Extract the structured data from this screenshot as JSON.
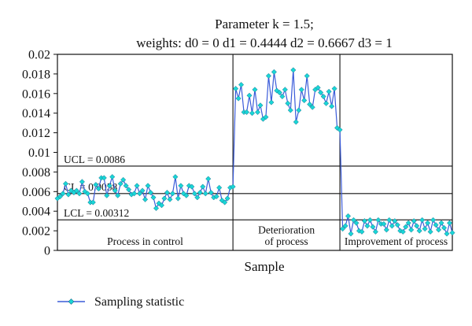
{
  "chart_data": {
    "type": "line",
    "title_line1": "Parameter k = 1.5;",
    "title_line2": "weights: d0 = 0  d1 = 0.4444  d2 = 0.6667  d3 = 1",
    "xlabel": "Sample",
    "ylabel": "",
    "ylim": [
      0,
      0.02
    ],
    "yticks": [
      0,
      0.002,
      0.004,
      0.006,
      0.008,
      0.01,
      0.012,
      0.014,
      0.016,
      0.018,
      0.02
    ],
    "ytick_labels": [
      "0",
      "0.002",
      "0.004",
      "0.006",
      "0.008",
      "0.01",
      "0.012",
      "0.014",
      "0.016",
      "0.018",
      "0.02"
    ],
    "xlim": [
      1,
      145
    ],
    "grid": false,
    "legend_position": "bottom-left",
    "control_lines": [
      {
        "name": "UCL",
        "label": "UCL = 0.0086",
        "value": 0.0086
      },
      {
        "name": "CL",
        "label": "CL = 0.0058",
        "value": 0.0058
      },
      {
        "name": "LCL",
        "label": "LCL = 0.00312",
        "value": 0.00312
      }
    ],
    "phases": [
      {
        "label_lines": [
          "Process in control"
        ],
        "start": 1,
        "end": 65
      },
      {
        "label_lines": [
          "Deterioration",
          "of process"
        ],
        "start": 65,
        "end": 104
      },
      {
        "label_lines": [
          "Improvement of process"
        ],
        "start": 104,
        "end": 145
      }
    ],
    "series": [
      {
        "name": "Sampling statistic",
        "color": "#3a5bd9",
        "marker_color": "#19d6d6",
        "y": [
          0.0053,
          0.0055,
          0.0058,
          0.0068,
          0.0057,
          0.0061,
          0.0059,
          0.0061,
          0.0058,
          0.007,
          0.006,
          0.0058,
          0.0049,
          0.0049,
          0.0067,
          0.0063,
          0.0074,
          0.0074,
          0.0056,
          0.0066,
          0.0075,
          0.0061,
          0.0056,
          0.0068,
          0.0072,
          0.0066,
          0.0062,
          0.0057,
          0.0058,
          0.0066,
          0.0058,
          0.0061,
          0.0052,
          0.0066,
          0.0059,
          0.0054,
          0.0043,
          0.0048,
          0.0046,
          0.0053,
          0.0059,
          0.0052,
          0.0058,
          0.0075,
          0.0053,
          0.0066,
          0.0058,
          0.0056,
          0.0066,
          0.0065,
          0.0058,
          0.0054,
          0.0059,
          0.0065,
          0.0058,
          0.0073,
          0.0059,
          0.0054,
          0.0055,
          0.0064,
          0.0051,
          0.0049,
          0.0053,
          0.0064,
          0.0065,
          0.0165,
          0.0155,
          0.0169,
          0.0141,
          0.0141,
          0.0158,
          0.014,
          0.0164,
          0.0141,
          0.0148,
          0.0134,
          0.0136,
          0.0178,
          0.0151,
          0.0182,
          0.0163,
          0.0161,
          0.0157,
          0.0164,
          0.015,
          0.0143,
          0.0184,
          0.0131,
          0.0143,
          0.0164,
          0.0153,
          0.0178,
          0.0149,
          0.0146,
          0.0164,
          0.0166,
          0.0161,
          0.0157,
          0.015,
          0.0162,
          0.0147,
          0.0165,
          0.0125,
          0.0123,
          0.0022,
          0.0025,
          0.0035,
          0.0017,
          0.0031,
          0.0028,
          0.002,
          0.0019,
          0.003,
          0.0025,
          0.0031,
          0.0024,
          0.0019,
          0.0031,
          0.0027,
          0.0027,
          0.0021,
          0.0031,
          0.0025,
          0.003,
          0.0026,
          0.002,
          0.0019,
          0.0024,
          0.0028,
          0.0021,
          0.003,
          0.0025,
          0.002,
          0.0031,
          0.0022,
          0.0028,
          0.0019,
          0.0031,
          0.0026,
          0.0021,
          0.0028,
          0.0023,
          0.0017,
          0.0028,
          0.0018
        ]
      }
    ]
  }
}
